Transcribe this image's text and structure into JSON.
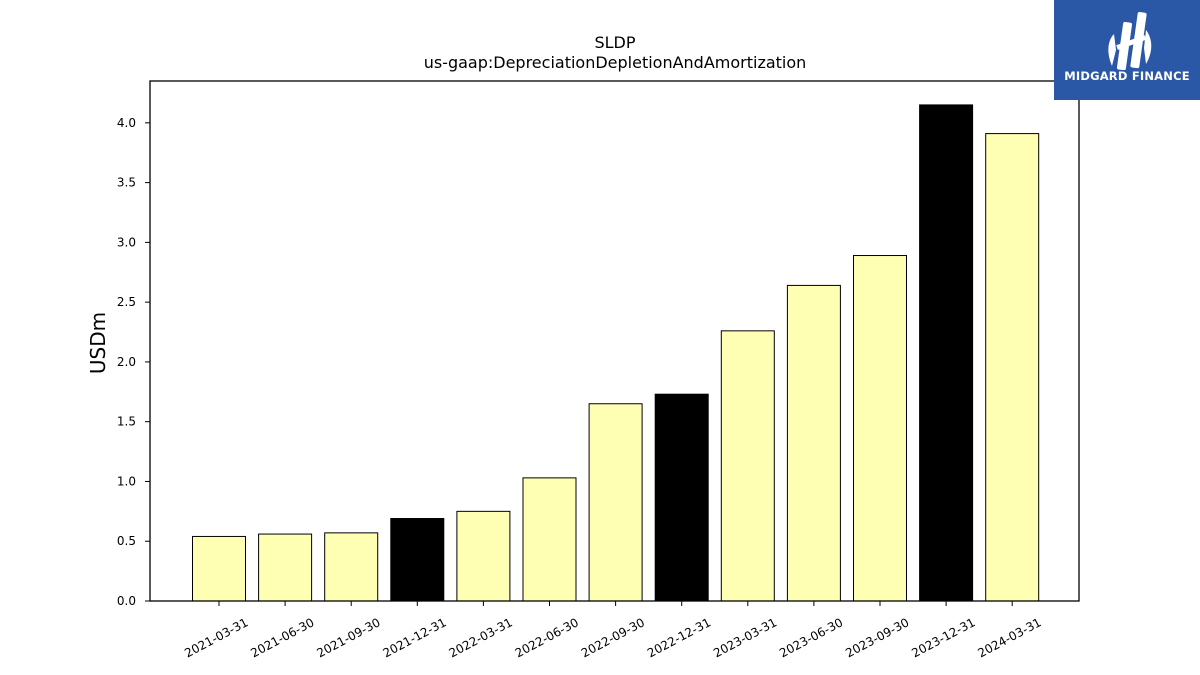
{
  "chart_data": {
    "type": "bar",
    "title": "SLDP",
    "subtitle": "us-gaap:DepreciationDepletionAndAmortization",
    "xlabel": "",
    "ylabel": "USDm",
    "ylim": [
      0,
      4.35
    ],
    "yticks": [
      "0.0",
      "0.5",
      "1.0",
      "1.5",
      "2.0",
      "2.5",
      "3.0",
      "3.5",
      "4.0"
    ],
    "categories": [
      "2021-03-31",
      "2021-06-30",
      "2021-09-30",
      "2021-12-31",
      "2022-03-31",
      "2022-06-30",
      "2022-09-30",
      "2022-12-31",
      "2023-03-31",
      "2023-06-30",
      "2023-09-30",
      "2023-12-31",
      "2024-03-31"
    ],
    "values": [
      0.54,
      0.56,
      0.57,
      0.69,
      0.75,
      1.03,
      1.65,
      1.73,
      2.26,
      2.64,
      2.89,
      4.15,
      3.91
    ],
    "bar_colors": [
      "#ffffb3",
      "#ffffb3",
      "#ffffb3",
      "#000000",
      "#ffffb3",
      "#ffffb3",
      "#ffffb3",
      "#000000",
      "#ffffb3",
      "#ffffb3",
      "#ffffb3",
      "#000000",
      "#ffffb3"
    ],
    "grid": false,
    "legend": "none"
  },
  "logo": {
    "text": "MIDGARD FINANCE",
    "background": "#2b57a7",
    "foreground": "#ffffff"
  }
}
